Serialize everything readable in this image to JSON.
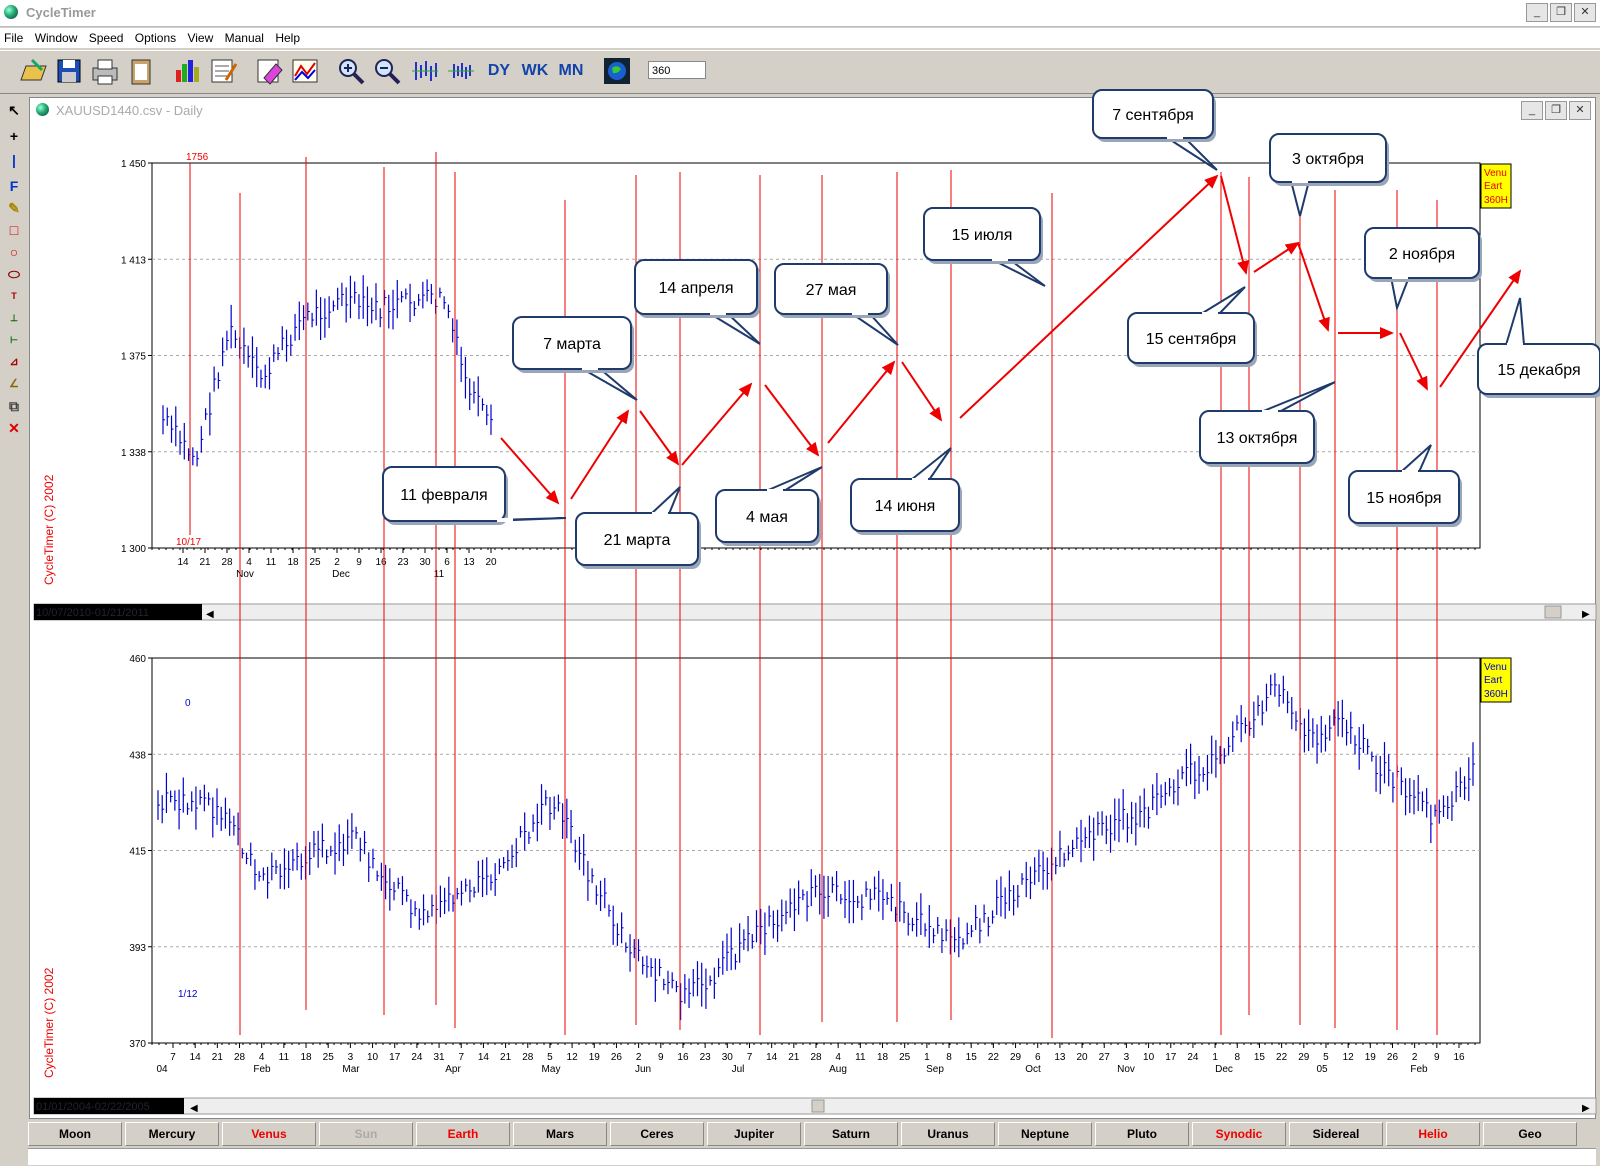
{
  "app": {
    "title": "CycleTimer"
  },
  "menu": [
    "File",
    "Window",
    "Speed",
    "Options",
    "View",
    "Manual",
    "Help"
  ],
  "toolbar": {
    "field_value": "360",
    "dy": "DY",
    "wk": "WK",
    "mn": "MN"
  },
  "child_window": {
    "title": "XAUUSD1440.csv - Daily"
  },
  "top_chart": {
    "copyright": "CycleTimer (C) 2002",
    "y_ticks": [
      "1 450",
      "1 413",
      "1 375",
      "1 338",
      "1 300"
    ],
    "x_ticks": [
      "14",
      "21",
      "28",
      "4",
      "11",
      "18",
      "25",
      "2",
      "9",
      "16",
      "23",
      "30",
      "6",
      "13",
      "20"
    ],
    "x_months": [
      "Nov",
      "Dec",
      "11"
    ],
    "marker_top": "1756",
    "marker_bottom": "10/17",
    "legend": [
      "Venu",
      "Eart",
      "360H"
    ],
    "date_range": "10/07/2010-01/21/2011"
  },
  "bottom_chart": {
    "copyright": "CycleTimer (C) 2002",
    "y_ticks": [
      "460",
      "438",
      "415",
      "393",
      "370"
    ],
    "x_ticks": [
      "7",
      "14",
      "21",
      "28",
      "4",
      "11",
      "18",
      "25",
      "3",
      "10",
      "17",
      "24",
      "31",
      "7",
      "14",
      "21",
      "28",
      "5",
      "12",
      "19",
      "26",
      "2",
      "9",
      "16",
      "23",
      "30",
      "7",
      "14",
      "21",
      "28",
      "4",
      "11",
      "18",
      "25",
      "1",
      "8",
      "15",
      "22",
      "29",
      "6",
      "13",
      "20",
      "27",
      "3",
      "10",
      "17",
      "24",
      "1",
      "8",
      "15",
      "22",
      "29",
      "5",
      "12",
      "19",
      "26",
      "2",
      "9",
      "16"
    ],
    "x_months": [
      "04",
      "Feb",
      "Mar",
      "Apr",
      "May",
      "Jun",
      "Jul",
      "Aug",
      "Sep",
      "Oct",
      "Nov",
      "Dec",
      "05",
      "Feb"
    ],
    "marker_top": "0",
    "marker_bottom": "1/12",
    "legend": [
      "Venu",
      "Eart",
      "360H"
    ],
    "date_range": "01/01/2004-02/22/2005"
  },
  "callouts": [
    "7 сентября",
    "3 октября",
    "15 июля",
    "14 апреля",
    "27 мая",
    "7 марта",
    "2 ноября",
    "15 сентября",
    "15 декабря",
    "13 октября",
    "11 февраля",
    "21 марта",
    "4 мая",
    "14 июня",
    "15 ноября"
  ],
  "planet_tabs": [
    "Moon",
    "Mercury",
    "Venus",
    "Sun",
    "Earth",
    "Mars",
    "Ceres",
    "Jupiter",
    "Saturn",
    "Uranus",
    "Neptune",
    "Pluto",
    "Synodic",
    "Sidereal",
    "Helio",
    "Geo"
  ],
  "colors": {
    "series": "#0000cc",
    "cycle_lines": "#ee0000",
    "arrows": "#ee0000",
    "grid": "#aaaaaa",
    "callout_border": "#1f3b6b",
    "legend_bg": "#ffff00"
  }
}
